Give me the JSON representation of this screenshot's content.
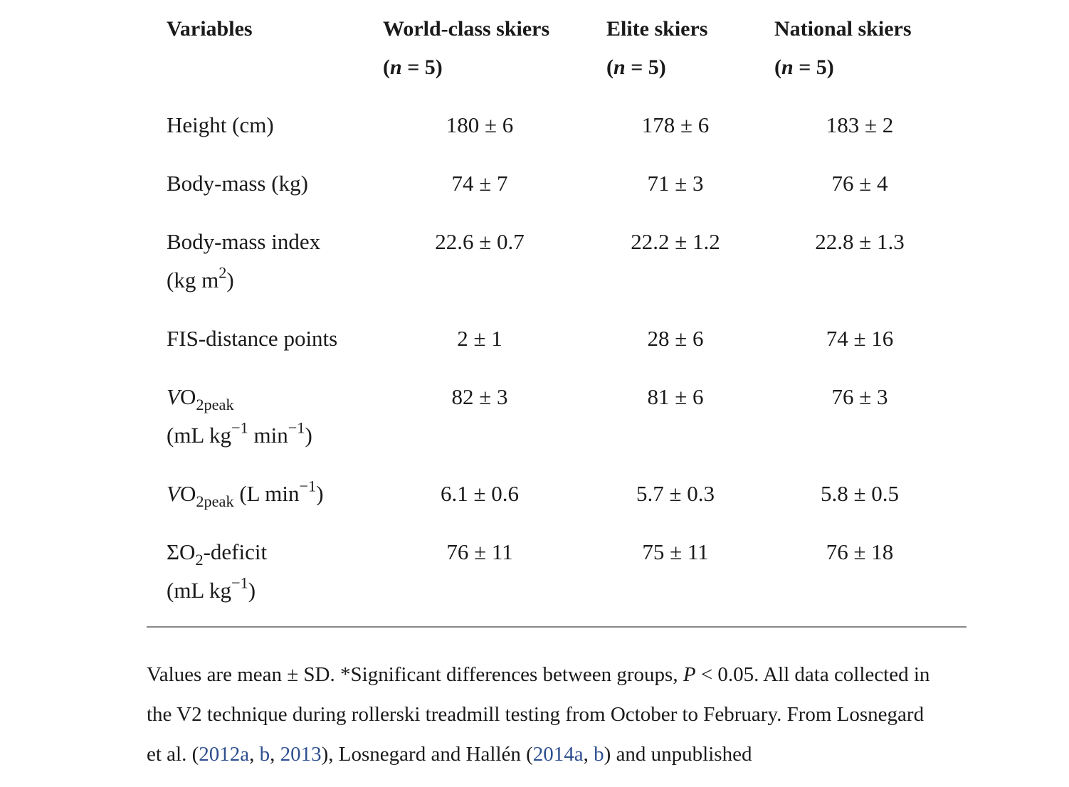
{
  "headers": {
    "variables": "Variables",
    "world_class": "World-class skiers",
    "world_class_n": "(n = 5)",
    "elite": "Elite skiers",
    "elite_n": "(n = 5)",
    "national": "National skiers",
    "national_n": "(n = 5)"
  },
  "n_symbol": "n",
  "n_value": " = 5)",
  "rows": [
    {
      "label": "Height (cm)",
      "world": "180 ± 6",
      "elite": "178 ± 6",
      "national": "183 ± 2"
    },
    {
      "label": "Body-mass (kg)",
      "world": "74 ± 7",
      "elite": "71 ± 3",
      "national": "76 ± 4"
    },
    {
      "label": "Body-mass index",
      "label2_pre": "(kg m",
      "label2_sup": "2",
      "label2_post": ")",
      "world": "22.6 ± 0.7",
      "elite": "22.2 ± 1.2",
      "national": "22.8 ± 1.3"
    },
    {
      "label": "FIS-distance points",
      "world": "2 ± 1",
      "elite": "28 ± 6",
      "national": "74 ± 16"
    },
    {
      "label_v": "V",
      "label_o": "O",
      "label_sub": "2peak",
      "label2_pre": "(mL kg",
      "label2_sup1": "−1",
      "label2_mid": " min",
      "label2_sup2": "−1",
      "label2_post": ")",
      "world": "82 ± 3",
      "elite": "81 ± 6",
      "national": "76 ± 3"
    },
    {
      "label_v": "V",
      "label_o": "O",
      "label_sub": "2peak",
      "label_unit_pre": " (L min",
      "label_unit_sup": "−1",
      "label_unit_post": ")",
      "world": "6.1 ± 0.6",
      "elite": "5.7 ± 0.3",
      "national": "5.8 ± 0.5"
    },
    {
      "label_pre": "ΣO",
      "label_sub": "2",
      "label_post": "-deficit",
      "label2_pre": "(mL kg",
      "label2_sup": "−1",
      "label2_post": ")",
      "world": "76 ± 11",
      "elite": "75 ± 11",
      "national": "76 ± 18"
    }
  ],
  "note": {
    "line1_a": "Values are mean ± SD. *Significant differences between groups, ",
    "line1_p": "P",
    "line1_b": " < 0.05. All data collected in",
    "line2": "the V2 technique during rollerski treadmill testing from October to February. From Losnegard",
    "line3_a": "et al. (",
    "ref1": "2012a",
    "sep1": ", ",
    "ref2": "b",
    "sep2": ", ",
    "ref3": "2013",
    "line3_b": "), Losnegard and Hallén (",
    "ref4": "2014a",
    "sep3": ", ",
    "ref5": "b",
    "line3_c": ") and unpublished"
  }
}
